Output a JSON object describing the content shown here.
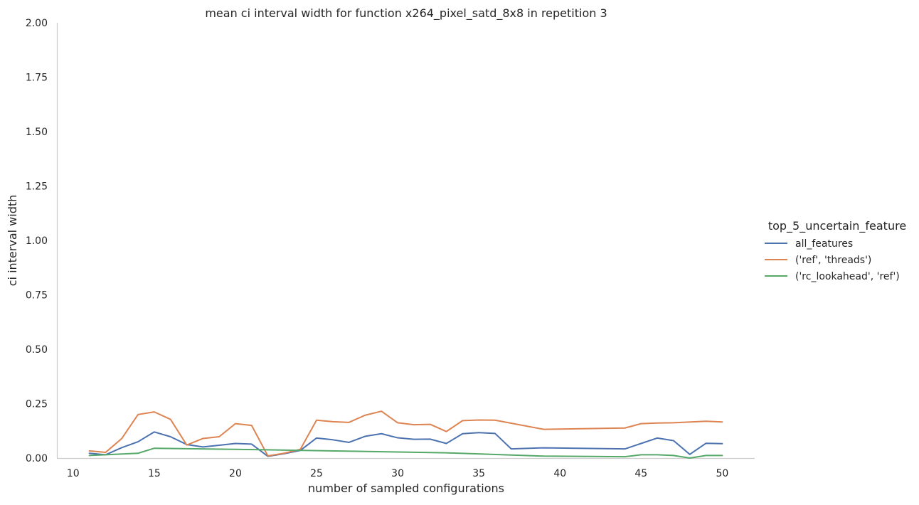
{
  "chart_data": {
    "type": "line",
    "title": "mean ci interval width for function x264_pixel_satd_8x8 in repetition 3",
    "xlabel": "number of sampled configurations",
    "ylabel": "ci interval width",
    "xlim": [
      9,
      52
    ],
    "ylim": [
      0,
      2.0
    ],
    "xticks": [
      10,
      15,
      20,
      25,
      30,
      35,
      40,
      45,
      50
    ],
    "yticks": [
      0.0,
      0.25,
      0.5,
      0.75,
      1.0,
      1.25,
      1.5,
      1.75,
      2.0
    ],
    "ytick_labels": [
      "0.00",
      "0.25",
      "0.50",
      "0.75",
      "1.00",
      "1.25",
      "1.50",
      "1.75",
      "2.00"
    ],
    "grid": false,
    "legend": {
      "title": "top_5_uncertain_feature",
      "placement": "right"
    },
    "series": [
      {
        "name": "all_features",
        "color": "#4c72b0",
        "x": [
          11,
          12,
          13,
          14,
          15,
          16,
          17,
          18,
          19,
          20,
          21,
          22,
          23,
          24,
          25,
          26,
          27,
          28,
          29,
          30,
          31,
          32,
          33,
          34,
          35,
          36,
          37,
          39,
          44,
          45,
          46,
          47,
          48,
          49,
          50
        ],
        "y": [
          0.022,
          0.015,
          0.048,
          0.075,
          0.12,
          0.098,
          0.062,
          0.051,
          0.059,
          0.067,
          0.064,
          0.008,
          0.02,
          0.035,
          0.092,
          0.084,
          0.072,
          0.1,
          0.112,
          0.093,
          0.086,
          0.087,
          0.067,
          0.112,
          0.117,
          0.113,
          0.042,
          0.047,
          0.042,
          0.067,
          0.092,
          0.08,
          0.017,
          0.068,
          0.066
        ]
      },
      {
        "name": "('ref', 'threads')",
        "color": "#dd8452",
        "x": [
          11,
          12,
          13,
          14,
          15,
          16,
          17,
          18,
          19,
          20,
          21,
          22,
          23,
          24,
          25,
          26,
          27,
          28,
          29,
          30,
          31,
          32,
          33,
          34,
          35,
          36,
          39,
          44,
          45,
          46,
          47,
          49,
          50
        ],
        "y": [
          0.033,
          0.026,
          0.09,
          0.2,
          0.212,
          0.178,
          0.06,
          0.09,
          0.098,
          0.158,
          0.15,
          0.01,
          0.022,
          0.04,
          0.174,
          0.167,
          0.164,
          0.197,
          0.215,
          0.162,
          0.153,
          0.155,
          0.122,
          0.172,
          0.175,
          0.174,
          0.132,
          0.138,
          0.158,
          0.161,
          0.162,
          0.169,
          0.166
        ]
      },
      {
        "name": "('rc_lookahead', 'ref')",
        "color": "#55a868",
        "x": [
          11,
          12,
          14,
          15,
          22,
          33,
          39,
          44,
          45,
          46,
          47,
          48,
          49,
          50
        ],
        "y": [
          0.012,
          0.015,
          0.022,
          0.045,
          0.038,
          0.024,
          0.009,
          0.006,
          0.015,
          0.015,
          0.012,
          0.0,
          0.012,
          0.012
        ]
      }
    ]
  }
}
